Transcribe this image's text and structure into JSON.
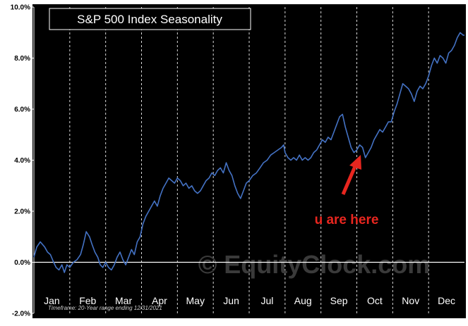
{
  "chart_data": {
    "type": "line",
    "title": "S&P 500 Index Seasonality",
    "xlabel": "",
    "ylabel": "",
    "ylim": [
      -2,
      10
    ],
    "y_ticks": [
      "10.0%",
      "8.0%",
      "6.0%",
      "4.0%",
      "2.0%",
      "0.0%",
      "-2.0%"
    ],
    "y_tick_values": [
      10,
      8,
      6,
      4,
      2,
      0,
      -2
    ],
    "x_tick_labels": [
      "Jan",
      "Feb",
      "Mar",
      "Apr",
      "May",
      "Jun",
      "Jul",
      "Aug",
      "Sep",
      "Oct",
      "Nov",
      "Dec"
    ],
    "xlim": [
      0,
      12
    ],
    "grid": "vertical dashed at month boundaries",
    "colors": {
      "background": "#000000",
      "line": "#4472c4",
      "axis": "#ffffff",
      "annotation": "#e8261f"
    },
    "series": [
      {
        "values": [
          [
            0.0,
            0.2
          ],
          [
            0.08,
            0.6
          ],
          [
            0.18,
            0.8
          ],
          [
            0.3,
            0.6
          ],
          [
            0.38,
            0.4
          ],
          [
            0.46,
            0.3
          ],
          [
            0.55,
            0.0
          ],
          [
            0.62,
            -0.2
          ],
          [
            0.7,
            -0.3
          ],
          [
            0.78,
            -0.1
          ],
          [
            0.85,
            -0.4
          ],
          [
            0.92,
            -0.1
          ],
          [
            1.0,
            -0.2
          ],
          [
            1.1,
            0.0
          ],
          [
            1.2,
            0.1
          ],
          [
            1.3,
            0.3
          ],
          [
            1.38,
            0.7
          ],
          [
            1.46,
            1.2
          ],
          [
            1.55,
            1.0
          ],
          [
            1.62,
            0.7
          ],
          [
            1.7,
            0.4
          ],
          [
            1.78,
            0.2
          ],
          [
            1.85,
            -0.1
          ],
          [
            1.92,
            -0.2
          ],
          [
            2.0,
            0.0
          ],
          [
            2.08,
            -0.2
          ],
          [
            2.16,
            -0.3
          ],
          [
            2.24,
            -0.1
          ],
          [
            2.32,
            0.2
          ],
          [
            2.4,
            0.4
          ],
          [
            2.48,
            0.1
          ],
          [
            2.56,
            -0.1
          ],
          [
            2.64,
            0.2
          ],
          [
            2.72,
            0.5
          ],
          [
            2.8,
            0.3
          ],
          [
            2.88,
            0.8
          ],
          [
            2.96,
            1.0
          ],
          [
            3.04,
            1.5
          ],
          [
            3.12,
            1.8
          ],
          [
            3.2,
            2.0
          ],
          [
            3.28,
            2.2
          ],
          [
            3.36,
            2.4
          ],
          [
            3.44,
            2.2
          ],
          [
            3.52,
            2.6
          ],
          [
            3.6,
            2.9
          ],
          [
            3.68,
            3.1
          ],
          [
            3.76,
            3.3
          ],
          [
            3.84,
            3.2
          ],
          [
            3.92,
            3.1
          ],
          [
            4.0,
            3.3
          ],
          [
            4.08,
            3.2
          ],
          [
            4.16,
            3.0
          ],
          [
            4.24,
            3.1
          ],
          [
            4.32,
            2.9
          ],
          [
            4.4,
            3.0
          ],
          [
            4.48,
            2.8
          ],
          [
            4.56,
            2.7
          ],
          [
            4.64,
            2.8
          ],
          [
            4.72,
            3.0
          ],
          [
            4.8,
            3.2
          ],
          [
            4.88,
            3.3
          ],
          [
            4.96,
            3.5
          ],
          [
            5.04,
            3.4
          ],
          [
            5.12,
            3.6
          ],
          [
            5.2,
            3.7
          ],
          [
            5.28,
            3.5
          ],
          [
            5.36,
            3.9
          ],
          [
            5.44,
            3.6
          ],
          [
            5.52,
            3.4
          ],
          [
            5.6,
            3.0
          ],
          [
            5.68,
            2.7
          ],
          [
            5.76,
            2.5
          ],
          [
            5.84,
            2.8
          ],
          [
            5.92,
            3.1
          ],
          [
            6.0,
            3.2
          ],
          [
            6.1,
            3.4
          ],
          [
            6.2,
            3.5
          ],
          [
            6.3,
            3.7
          ],
          [
            6.4,
            3.9
          ],
          [
            6.5,
            4.0
          ],
          [
            6.6,
            4.2
          ],
          [
            6.7,
            4.3
          ],
          [
            6.8,
            4.4
          ],
          [
            6.9,
            4.5
          ],
          [
            6.96,
            4.6
          ],
          [
            7.0,
            4.3
          ],
          [
            7.08,
            4.1
          ],
          [
            7.16,
            4.0
          ],
          [
            7.24,
            4.1
          ],
          [
            7.32,
            4.0
          ],
          [
            7.4,
            4.2
          ],
          [
            7.48,
            4.0
          ],
          [
            7.56,
            4.1
          ],
          [
            7.64,
            4.0
          ],
          [
            7.72,
            4.1
          ],
          [
            7.8,
            4.3
          ],
          [
            7.88,
            4.4
          ],
          [
            7.96,
            4.6
          ],
          [
            8.04,
            4.8
          ],
          [
            8.12,
            4.7
          ],
          [
            8.2,
            4.9
          ],
          [
            8.28,
            4.8
          ],
          [
            8.36,
            5.1
          ],
          [
            8.44,
            5.4
          ],
          [
            8.52,
            5.7
          ],
          [
            8.6,
            5.8
          ],
          [
            8.68,
            5.3
          ],
          [
            8.76,
            4.9
          ],
          [
            8.84,
            4.5
          ],
          [
            8.92,
            4.3
          ],
          [
            9.0,
            4.4
          ],
          [
            9.08,
            4.6
          ],
          [
            9.16,
            4.5
          ],
          [
            9.24,
            4.1
          ],
          [
            9.32,
            4.3
          ],
          [
            9.4,
            4.5
          ],
          [
            9.48,
            4.8
          ],
          [
            9.56,
            5.0
          ],
          [
            9.64,
            5.2
          ],
          [
            9.72,
            5.1
          ],
          [
            9.8,
            5.3
          ],
          [
            9.88,
            5.5
          ],
          [
            9.96,
            5.5
          ],
          [
            10.04,
            5.9
          ],
          [
            10.12,
            6.2
          ],
          [
            10.2,
            6.6
          ],
          [
            10.28,
            7.0
          ],
          [
            10.36,
            6.9
          ],
          [
            10.44,
            6.8
          ],
          [
            10.52,
            6.6
          ],
          [
            10.6,
            6.3
          ],
          [
            10.68,
            6.7
          ],
          [
            10.76,
            6.9
          ],
          [
            10.84,
            6.8
          ],
          [
            10.92,
            7.0
          ],
          [
            11.0,
            7.3
          ],
          [
            11.08,
            7.7
          ],
          [
            11.16,
            8.0
          ],
          [
            11.24,
            7.8
          ],
          [
            11.32,
            8.1
          ],
          [
            11.4,
            8.0
          ],
          [
            11.48,
            7.8
          ],
          [
            11.56,
            8.2
          ],
          [
            11.64,
            8.3
          ],
          [
            11.72,
            8.5
          ],
          [
            11.8,
            8.8
          ],
          [
            11.88,
            9.0
          ],
          [
            11.96,
            8.9
          ],
          [
            12.0,
            8.9
          ]
        ]
      }
    ],
    "annotation": "u are here",
    "footnote": "Timeframe: 20-Year range ending 12/31/2021",
    "watermark": "© EquityClock.com"
  }
}
